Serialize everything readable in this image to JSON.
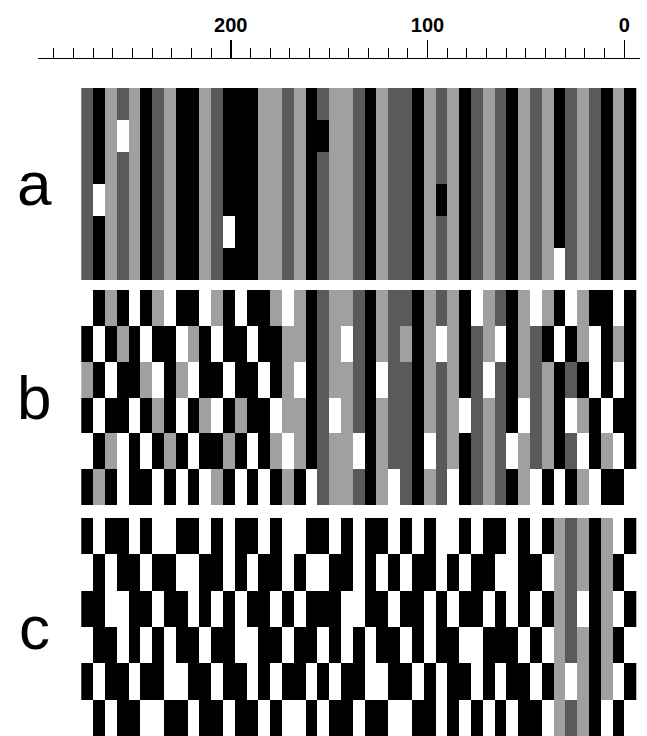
{
  "chart_data": {
    "type": "heatmap",
    "x": [
      273,
      267,
      261,
      255,
      249,
      243,
      237,
      231,
      225,
      219,
      213,
      207,
      201,
      195,
      189,
      183,
      177,
      171,
      165,
      159,
      153,
      147,
      141,
      135,
      129,
      123,
      117,
      111,
      105,
      99,
      93,
      87,
      81,
      75,
      69,
      63,
      57,
      51,
      45,
      39,
      33,
      27,
      21,
      15,
      9,
      3,
      -3
    ],
    "xlim": [
      298,
      -8
    ],
    "xticks": [
      0,
      100,
      200
    ],
    "xminor": [
      10,
      20,
      30,
      40,
      50,
      60,
      70,
      80,
      90,
      110,
      120,
      130,
      140,
      150,
      160,
      170,
      180,
      190,
      210,
      220,
      230,
      240,
      250,
      260,
      270,
      280,
      290
    ],
    "tick_labels": "x",
    "colors": [
      "#000000",
      "#5a5a5a",
      "#a0a0a0",
      "#ffffff"
    ],
    "panels": [
      {
        "label": "a",
        "cells": [
          [
            1,
            0,
            2,
            1,
            2,
            0,
            1,
            2,
            0,
            0,
            2,
            1,
            0,
            0,
            0,
            2,
            2,
            1,
            2,
            0,
            1,
            2,
            2,
            1,
            0,
            2,
            1,
            1,
            0,
            2,
            1,
            2,
            0,
            1,
            2,
            1,
            0,
            2,
            1,
            2,
            0,
            1,
            2,
            1,
            0,
            2,
            0
          ],
          [
            1,
            0,
            2,
            3,
            2,
            0,
            1,
            2,
            0,
            0,
            2,
            1,
            0,
            0,
            0,
            2,
            2,
            1,
            2,
            0,
            0,
            2,
            2,
            1,
            0,
            2,
            1,
            1,
            0,
            2,
            1,
            2,
            0,
            1,
            2,
            1,
            0,
            2,
            1,
            2,
            0,
            1,
            2,
            1,
            0,
            2,
            0
          ],
          [
            1,
            0,
            2,
            1,
            2,
            0,
            1,
            2,
            0,
            0,
            2,
            1,
            0,
            0,
            0,
            2,
            2,
            1,
            2,
            0,
            1,
            2,
            2,
            1,
            0,
            2,
            1,
            1,
            0,
            2,
            1,
            2,
            0,
            1,
            2,
            1,
            0,
            2,
            1,
            2,
            0,
            1,
            2,
            1,
            0,
            2,
            0
          ],
          [
            1,
            3,
            2,
            1,
            2,
            0,
            1,
            2,
            0,
            0,
            2,
            1,
            0,
            0,
            0,
            2,
            2,
            1,
            2,
            0,
            1,
            2,
            2,
            1,
            0,
            2,
            1,
            1,
            0,
            2,
            0,
            2,
            0,
            1,
            2,
            1,
            0,
            2,
            1,
            2,
            0,
            1,
            2,
            1,
            0,
            2,
            0
          ],
          [
            1,
            0,
            2,
            1,
            2,
            0,
            1,
            2,
            0,
            0,
            2,
            1,
            3,
            0,
            0,
            2,
            2,
            1,
            2,
            0,
            1,
            2,
            2,
            1,
            0,
            2,
            1,
            1,
            0,
            2,
            1,
            2,
            0,
            1,
            2,
            1,
            0,
            2,
            1,
            2,
            0,
            1,
            2,
            1,
            0,
            2,
            0
          ],
          [
            1,
            0,
            2,
            1,
            2,
            0,
            1,
            2,
            0,
            0,
            2,
            1,
            0,
            0,
            0,
            2,
            2,
            1,
            2,
            0,
            1,
            2,
            2,
            1,
            0,
            2,
            1,
            1,
            0,
            2,
            1,
            2,
            0,
            1,
            2,
            1,
            0,
            2,
            1,
            2,
            3,
            1,
            2,
            1,
            0,
            2,
            0
          ]
        ]
      },
      {
        "label": "b",
        "cells": [
          [
            3,
            0,
            2,
            0,
            3,
            0,
            2,
            3,
            0,
            0,
            3,
            2,
            0,
            3,
            0,
            0,
            2,
            3,
            2,
            0,
            1,
            2,
            2,
            1,
            0,
            2,
            1,
            1,
            0,
            2,
            1,
            2,
            0,
            3,
            2,
            1,
            0,
            2,
            3,
            2,
            0,
            3,
            2,
            0,
            0,
            3,
            0
          ],
          [
            0,
            3,
            0,
            2,
            0,
            3,
            0,
            0,
            3,
            2,
            0,
            3,
            0,
            0,
            3,
            0,
            0,
            2,
            2,
            0,
            1,
            2,
            3,
            1,
            0,
            2,
            1,
            2,
            0,
            2,
            3,
            2,
            0,
            1,
            2,
            3,
            0,
            2,
            1,
            0,
            3,
            0,
            2,
            3,
            0,
            2,
            0
          ],
          [
            2,
            0,
            3,
            0,
            0,
            2,
            3,
            0,
            2,
            3,
            0,
            0,
            3,
            0,
            0,
            3,
            0,
            2,
            3,
            0,
            1,
            2,
            2,
            1,
            0,
            3,
            1,
            1,
            0,
            2,
            1,
            2,
            0,
            1,
            3,
            1,
            0,
            2,
            1,
            2,
            0,
            1,
            0,
            3,
            0,
            3,
            0
          ],
          [
            0,
            3,
            0,
            0,
            3,
            0,
            2,
            0,
            3,
            0,
            2,
            3,
            0,
            2,
            0,
            0,
            3,
            2,
            2,
            0,
            1,
            3,
            2,
            1,
            0,
            2,
            1,
            1,
            0,
            2,
            1,
            2,
            3,
            1,
            2,
            1,
            0,
            3,
            1,
            2,
            0,
            3,
            2,
            0,
            3,
            0,
            0
          ],
          [
            3,
            0,
            2,
            3,
            0,
            3,
            0,
            2,
            0,
            3,
            0,
            0,
            2,
            0,
            3,
            0,
            2,
            3,
            2,
            0,
            1,
            2,
            2,
            3,
            0,
            2,
            1,
            1,
            0,
            3,
            1,
            2,
            0,
            1,
            2,
            1,
            3,
            2,
            1,
            2,
            0,
            1,
            3,
            0,
            2,
            3,
            0
          ],
          [
            0,
            2,
            0,
            3,
            0,
            0,
            3,
            0,
            3,
            0,
            3,
            2,
            0,
            3,
            0,
            3,
            0,
            2,
            0,
            3,
            1,
            2,
            2,
            1,
            0,
            2,
            3,
            1,
            0,
            2,
            1,
            3,
            0,
            1,
            2,
            1,
            0,
            2,
            3,
            0,
            3,
            0,
            2,
            3,
            0,
            0,
            3
          ]
        ]
      },
      {
        "label": "c",
        "cells": [
          [
            0,
            3,
            0,
            0,
            3,
            0,
            3,
            3,
            0,
            0,
            3,
            0,
            3,
            0,
            0,
            3,
            0,
            3,
            3,
            0,
            0,
            3,
            0,
            3,
            0,
            0,
            3,
            0,
            3,
            0,
            3,
            3,
            0,
            3,
            0,
            0,
            3,
            0,
            3,
            0,
            2,
            1,
            2,
            0,
            2,
            3,
            0
          ],
          [
            3,
            0,
            3,
            0,
            0,
            3,
            0,
            0,
            3,
            3,
            0,
            0,
            3,
            0,
            3,
            0,
            0,
            3,
            0,
            3,
            3,
            0,
            0,
            3,
            0,
            3,
            0,
            3,
            0,
            0,
            3,
            0,
            3,
            0,
            0,
            3,
            3,
            0,
            0,
            3,
            2,
            1,
            2,
            0,
            2,
            0,
            3
          ],
          [
            0,
            0,
            3,
            3,
            0,
            0,
            3,
            0,
            0,
            3,
            0,
            3,
            0,
            3,
            0,
            0,
            3,
            0,
            3,
            0,
            0,
            0,
            3,
            3,
            0,
            0,
            3,
            0,
            0,
            3,
            0,
            3,
            0,
            0,
            3,
            0,
            3,
            0,
            3,
            0,
            2,
            1,
            3,
            0,
            2,
            3,
            0
          ],
          [
            3,
            0,
            0,
            3,
            0,
            3,
            0,
            3,
            0,
            0,
            3,
            0,
            0,
            3,
            3,
            0,
            0,
            3,
            0,
            0,
            3,
            0,
            3,
            0,
            3,
            0,
            0,
            3,
            0,
            3,
            0,
            0,
            3,
            3,
            0,
            0,
            0,
            3,
            0,
            3,
            2,
            1,
            2,
            0,
            2,
            0,
            3
          ],
          [
            0,
            3,
            0,
            0,
            3,
            0,
            0,
            3,
            3,
            0,
            0,
            3,
            0,
            0,
            3,
            0,
            3,
            0,
            0,
            3,
            0,
            3,
            0,
            0,
            3,
            3,
            0,
            0,
            3,
            0,
            3,
            0,
            0,
            3,
            0,
            3,
            0,
            0,
            3,
            0,
            2,
            3,
            2,
            0,
            2,
            3,
            0
          ],
          [
            3,
            0,
            3,
            0,
            0,
            3,
            3,
            0,
            0,
            3,
            0,
            0,
            3,
            0,
            0,
            3,
            0,
            3,
            3,
            0,
            3,
            0,
            0,
            3,
            0,
            0,
            3,
            3,
            0,
            0,
            3,
            0,
            3,
            0,
            3,
            0,
            3,
            0,
            0,
            3,
            2,
            1,
            2,
            0,
            3,
            0,
            3
          ]
        ]
      }
    ]
  }
}
